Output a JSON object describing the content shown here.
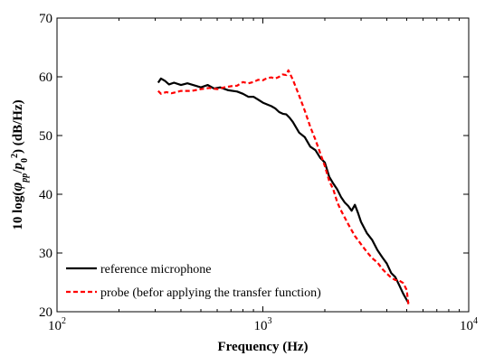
{
  "chart_data": {
    "type": "line",
    "x_scale": "log",
    "xlim": [
      100,
      10000
    ],
    "ylim": [
      20,
      70
    ],
    "x_ticks": [
      100,
      1000,
      10000
    ],
    "x_tick_labels": [
      {
        "base": "10",
        "exp": "2"
      },
      {
        "base": "10",
        "exp": "3"
      },
      {
        "base": "10",
        "exp": "4"
      }
    ],
    "y_ticks": [
      20,
      30,
      40,
      50,
      60,
      70
    ],
    "y_tick_labels": [
      "20",
      "30",
      "40",
      "50",
      "60",
      "70"
    ],
    "xlabel": "Frequency (Hz)",
    "ylabel": {
      "prefix": "10 log(",
      "phi": "φ",
      "phi_sub": "pp",
      "slash": "/",
      "p": "p",
      "p_sub": "0",
      "p_sup": "2",
      "suffix": ")  (dB/Hz)"
    },
    "grid": false,
    "legend_position": "bottom-left",
    "series": [
      {
        "name": "reference microphone",
        "color": "#000000",
        "dash": "solid",
        "x": [
          310,
          320,
          335,
          350,
          370,
          400,
          430,
          470,
          500,
          540,
          580,
          620,
          680,
          750,
          800,
          850,
          900,
          950,
          1000,
          1050,
          1100,
          1150,
          1200,
          1250,
          1300,
          1350,
          1400,
          1500,
          1600,
          1700,
          1800,
          1900,
          2000,
          2100,
          2200,
          2300,
          2400,
          2500,
          2600,
          2700,
          2800,
          2900,
          3000,
          3200,
          3400,
          3600,
          3800,
          4000,
          4200,
          4400,
          4600,
          4800,
          5000,
          5100
        ],
        "y": [
          59.0,
          59.7,
          59.3,
          58.7,
          59.0,
          58.6,
          58.9,
          58.5,
          58.2,
          58.6,
          58.0,
          58.2,
          57.7,
          57.5,
          57.1,
          56.6,
          56.6,
          56.1,
          55.6,
          55.3,
          55.0,
          54.6,
          54.0,
          53.7,
          53.6,
          53.0,
          52.3,
          50.5,
          49.7,
          48.1,
          47.5,
          46.2,
          45.4,
          43.0,
          41.8,
          40.8,
          39.5,
          38.6,
          38.0,
          37.2,
          38.2,
          36.8,
          35.3,
          33.4,
          32.2,
          30.5,
          29.3,
          28.2,
          26.6,
          25.9,
          24.5,
          23.1,
          22.0,
          21.5
        ]
      },
      {
        "name": "probe (befor applying the transfer function)",
        "color": "#ff0000",
        "dash": "dashed",
        "x": [
          310,
          320,
          340,
          360,
          400,
          450,
          500,
          550,
          600,
          650,
          700,
          750,
          800,
          850,
          900,
          950,
          1000,
          1050,
          1100,
          1150,
          1200,
          1250,
          1300,
          1330,
          1360,
          1400,
          1500,
          1600,
          1700,
          1800,
          1900,
          2000,
          2100,
          2200,
          2300,
          2400,
          2600,
          2800,
          3000,
          3200,
          3400,
          3600,
          3800,
          4000,
          4200,
          4400,
          4600,
          4800,
          5000,
          5100
        ],
        "y": [
          57.6,
          57.1,
          57.4,
          57.2,
          57.6,
          57.6,
          57.9,
          58.1,
          57.9,
          58.2,
          58.4,
          58.5,
          59.1,
          58.9,
          59.1,
          59.5,
          59.4,
          59.8,
          59.9,
          59.7,
          60.0,
          60.4,
          60.3,
          61.1,
          60.4,
          59.5,
          56.8,
          54.2,
          51.5,
          49.3,
          47.0,
          44.8,
          42.3,
          40.8,
          38.6,
          37.2,
          34.9,
          32.9,
          31.5,
          30.2,
          29.1,
          28.4,
          27.3,
          26.5,
          25.8,
          25.4,
          25.3,
          24.9,
          23.7,
          21.0
        ]
      }
    ]
  }
}
